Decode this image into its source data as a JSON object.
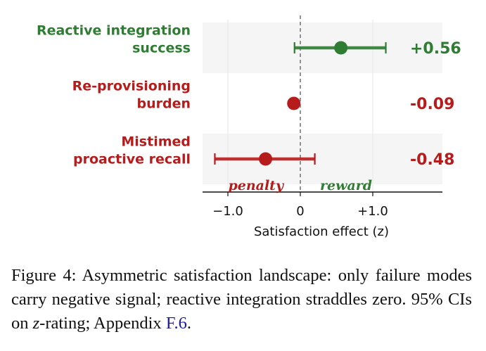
{
  "chart_data": {
    "type": "dot-errorbar",
    "xlabel": "Satisfaction effect (z)",
    "xlim": [
      -1.35,
      1.95
    ],
    "x_ticks": [
      -1.0,
      0,
      1.0
    ],
    "x_tick_labels": [
      "−1.0",
      "0",
      "+1.0"
    ],
    "grid": "vertical",
    "reference_line": 0,
    "points": [
      {
        "label_lines": [
          "Reactive integration",
          "success"
        ],
        "value": 0.56,
        "ci": [
          -0.08,
          1.18
        ],
        "value_label": "+0.56",
        "color": "#2e7d32"
      },
      {
        "label_lines": [
          "Re-provisioning",
          "burden"
        ],
        "value": -0.09,
        "ci": null,
        "value_label": "-0.09",
        "color": "#b71c1c"
      },
      {
        "label_lines": [
          "Mistimed",
          "proactive recall"
        ],
        "value": -0.48,
        "ci": [
          -1.18,
          0.2
        ],
        "value_label": "-0.48",
        "color": "#b71c1c"
      }
    ],
    "annotations": [
      {
        "text": "penalty",
        "side": "negative",
        "color": "#b71c1c"
      },
      {
        "text": "reward",
        "side": "positive",
        "color": "#2e7d32"
      }
    ]
  },
  "caption": {
    "main": "Figure 4: Asymmetric satisfaction landscape: only failure modes carry negative signal; reactive integration straddles zero. 95% CIs on ",
    "zvar": "z",
    "tail": "-rating; Appendix ",
    "ref": "F.6",
    "end": "."
  }
}
